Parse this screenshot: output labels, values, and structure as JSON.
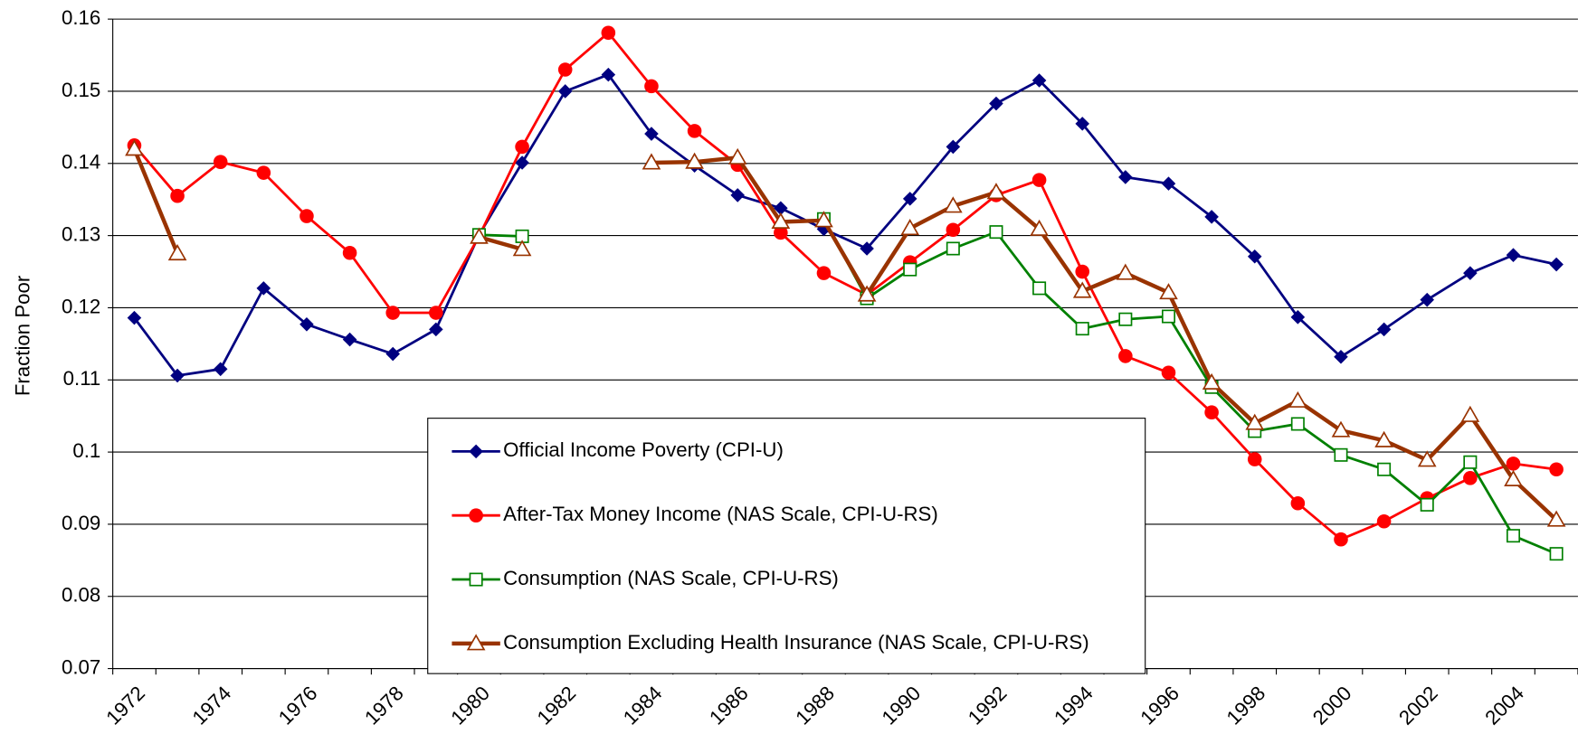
{
  "chart_data": {
    "type": "line",
    "y_label": "Fraction Poor",
    "categories": [
      "1972",
      null,
      "1974",
      null,
      "1976",
      null,
      "1978",
      null,
      "1980",
      null,
      "1982",
      null,
      "1984",
      null,
      "1986",
      null,
      "1988",
      null,
      "1990",
      null,
      "1992",
      null,
      "1994",
      null,
      "1996",
      null,
      "1998",
      null,
      "2000",
      null,
      "2002",
      null,
      "2004",
      null
    ],
    "ylim": [
      0.07,
      0.16
    ],
    "yticks": [
      0.07,
      0.08,
      0.09,
      0.1,
      0.11,
      0.12,
      0.13,
      0.14,
      0.15,
      0.16
    ],
    "grid": true,
    "legend": "lower center",
    "series": [
      {
        "name": "Official Income Poverty (CPI-U)",
        "color": "#000080",
        "marker": "diamond",
        "values": [
          0.1186,
          0.1106,
          0.1115,
          0.1227,
          0.1177,
          0.1156,
          0.1136,
          0.117,
          0.1301,
          0.1401,
          0.15,
          0.1523,
          0.1441,
          0.1397,
          0.1356,
          0.1338,
          0.1309,
          0.1282,
          0.1351,
          0.1423,
          0.1483,
          0.1515,
          0.1455,
          0.1381,
          0.1372,
          0.1326,
          0.1271,
          0.1187,
          0.1132,
          0.117,
          0.1211,
          0.1248,
          0.1273,
          0.126
        ]
      },
      {
        "name": "After-Tax Money Income (NAS Scale, CPI-U-RS)",
        "color": "#ff0000",
        "marker": "circle",
        "values": [
          0.1425,
          0.1355,
          0.1402,
          0.1387,
          0.1327,
          0.1276,
          0.1193,
          0.1193,
          0.1299,
          0.1423,
          0.153,
          0.1581,
          0.1507,
          0.1445,
          0.1398,
          0.1304,
          0.1248,
          0.1218,
          0.1263,
          0.1308,
          0.1356,
          0.1377,
          0.125,
          0.1133,
          0.111,
          0.1055,
          0.099,
          0.0929,
          0.0879,
          0.0904,
          0.0936,
          0.0964,
          0.0984,
          0.0976
        ]
      },
      {
        "name": "Consumption (NAS Scale, CPI-U-RS)",
        "color": "#008000",
        "marker": "square",
        "values": [
          null,
          null,
          null,
          null,
          null,
          null,
          null,
          null,
          0.1301,
          0.1299,
          null,
          null,
          null,
          null,
          null,
          null,
          0.1323,
          0.1213,
          0.1253,
          0.1282,
          0.1305,
          0.1227,
          0.1171,
          0.1184,
          0.1188,
          0.109,
          0.1029,
          0.1039,
          0.0996,
          0.0976,
          0.0927,
          0.0986,
          0.0884,
          0.0859
        ]
      },
      {
        "name": "Consumption Excluding Health Insurance (NAS Scale, CPI-U-RS)",
        "color": "#993300",
        "marker": "triangle",
        "values": [
          0.142,
          0.1275,
          null,
          null,
          null,
          null,
          null,
          null,
          0.1298,
          0.1281,
          null,
          null,
          0.1401,
          0.1402,
          0.1408,
          0.1319,
          0.1321,
          0.1218,
          0.131,
          0.1341,
          0.136,
          0.1309,
          0.1223,
          0.1248,
          0.1221,
          0.1096,
          0.104,
          0.1071,
          0.103,
          0.1016,
          0.0989,
          0.1051,
          0.0962,
          0.0906
        ]
      }
    ]
  }
}
